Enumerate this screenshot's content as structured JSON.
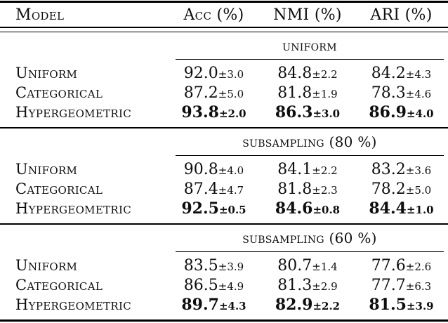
{
  "table": {
    "columns": {
      "model": "Model",
      "acc": "Acc (%)",
      "nmi": "NMI (%)",
      "ari": "ARI (%)"
    },
    "sections": [
      {
        "title": "uniform",
        "rows": [
          {
            "model": "Uniform",
            "acc": "92.0",
            "acc_err": "±3.0",
            "nmi": "84.8",
            "nmi_err": "±2.2",
            "ari": "84.2",
            "ari_err": "±4.3"
          },
          {
            "model": "Categorical",
            "acc": "87.2",
            "acc_err": "±5.0",
            "nmi": "81.8",
            "nmi_err": "±1.9",
            "ari": "78.3",
            "ari_err": "±4.6"
          },
          {
            "model": "Hypergeometric",
            "acc": "93.8",
            "acc_err": "±2.0",
            "nmi": "86.3",
            "nmi_err": "±3.0",
            "ari": "86.9",
            "ari_err": "±4.0"
          }
        ]
      },
      {
        "title": "subsampling (80 %)",
        "rows": [
          {
            "model": "Uniform",
            "acc": "90.8",
            "acc_err": "±4.0",
            "nmi": "84.1",
            "nmi_err": "±2.2",
            "ari": "83.2",
            "ari_err": "±3.6"
          },
          {
            "model": "Categorical",
            "acc": "87.4",
            "acc_err": "±4.7",
            "nmi": "81.8",
            "nmi_err": "±2.3",
            "ari": "78.2",
            "ari_err": "±5.0"
          },
          {
            "model": "Hypergeometric",
            "acc": "92.5",
            "acc_err": "±0.5",
            "nmi": "84.6",
            "nmi_err": "±0.8",
            "ari": "84.4",
            "ari_err": "±1.0"
          }
        ]
      },
      {
        "title": "subsampling (60 %)",
        "rows": [
          {
            "model": "Uniform",
            "acc": "83.5",
            "acc_err": "±3.9",
            "nmi": "80.7",
            "nmi_err": "±1.4",
            "ari": "77.6",
            "ari_err": "±2.6"
          },
          {
            "model": "Categorical",
            "acc": "86.5",
            "acc_err": "±4.9",
            "nmi": "81.3",
            "nmi_err": "±2.9",
            "ari": "77.7",
            "ari_err": "±6.3"
          },
          {
            "model": "Hypergeometric",
            "acc": "89.7",
            "acc_err": "±4.3",
            "nmi": "82.9",
            "nmi_err": "±2.2",
            "ari": "81.5",
            "ari_err": "±3.9"
          }
        ]
      }
    ],
    "best_row_per_section": "Hypergeometric",
    "text_color": "#0e0e0e",
    "background_color": "#ffffff"
  }
}
